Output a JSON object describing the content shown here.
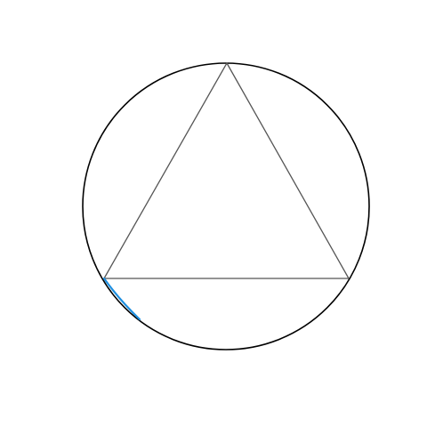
{
  "diagram": {
    "colors": {
      "background": "#ffffff",
      "circle_stroke": "#000000",
      "triangle_stroke": "#555555",
      "highlight_arc": "#1e8fe0"
    }
  }
}
